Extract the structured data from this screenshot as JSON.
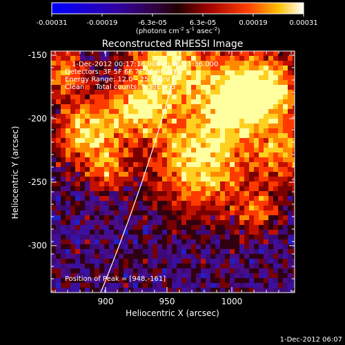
{
  "colorbar": {
    "ticks": [
      "-0.00031",
      "-0.00019",
      "-6.3e-05",
      "6.3e-05",
      "0.00019",
      "0.00031"
    ],
    "unit_base": "(photons cm",
    "unit_exp1": "-2",
    "unit_mid": " s",
    "unit_exp2": "-1",
    "unit_mid2": " asec",
    "unit_exp3": "-2",
    "unit_end": ")"
  },
  "title": "Reconstructed RHESSI Image",
  "info": {
    "line1": "1-Dec-2012 00:17:18.000 to 00:21:36.000",
    "line2": "Detectors: 3F 5F 6F 7F 8F 9F  Att 0",
    "line3": "Energy Range: 12.0 - 25.0 keV",
    "line4": "Clean     Total counts: 9.38E+03",
    "peak": "Position of Peak = [948,-161]"
  },
  "axes": {
    "xlabel": "Heliocentric X (arcsec)",
    "ylabel": "Heliocentric Y (arcsec)",
    "xticks": [
      "900",
      "950",
      "1000"
    ],
    "yticks": [
      "-150",
      "-200",
      "-250",
      "-300"
    ]
  },
  "footer": {
    "date": "1-Dec-2012 06:07"
  },
  "colors": {
    "background": "#000000",
    "limb": "#ffffff"
  }
}
